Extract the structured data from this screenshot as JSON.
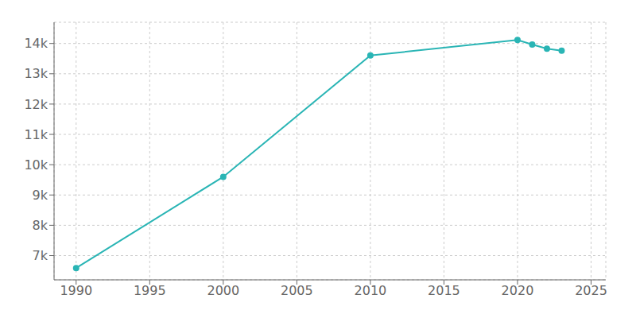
{
  "chart_data": {
    "type": "line",
    "x": [
      1990,
      2000,
      2010,
      2020,
      2021,
      2022,
      2023
    ],
    "values": [
      6590,
      9600,
      13603,
      14118,
      13965,
      13830,
      13760
    ],
    "color": "#2ab5b5",
    "marker": "circle",
    "xlim": [
      1988.5,
      2026
    ],
    "ylim": [
      6200,
      14700
    ],
    "xticks": [
      1990,
      1995,
      2000,
      2005,
      2010,
      2015,
      2020,
      2025
    ],
    "yticks": [
      {
        "value": 7000,
        "label": "7k"
      },
      {
        "value": 8000,
        "label": "8k"
      },
      {
        "value": 9000,
        "label": "9k"
      },
      {
        "value": 10000,
        "label": "10k"
      },
      {
        "value": 11000,
        "label": "11k"
      },
      {
        "value": 12000,
        "label": "12k"
      },
      {
        "value": 13000,
        "label": "13k"
      },
      {
        "value": 14000,
        "label": "14k"
      }
    ],
    "grid": true
  }
}
